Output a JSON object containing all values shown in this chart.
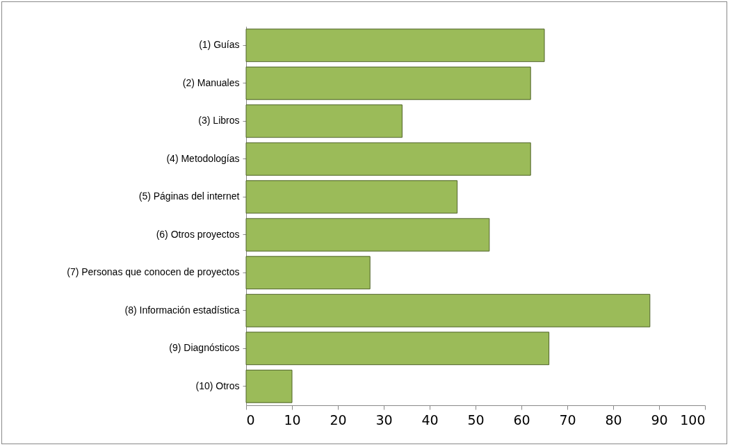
{
  "chart_data": {
    "type": "bar",
    "orientation": "horizontal",
    "categories": [
      "(1) Guías",
      "(2) Manuales",
      "(3) Libros",
      "(4) Metodologías",
      "(5) Páginas del internet",
      "(6) Otros proyectos",
      "(7) Personas que conocen de proyectos",
      "(8) Información estadística",
      "(9) Diagnósticos",
      "(10) Otros"
    ],
    "values": [
      65,
      62,
      34,
      62,
      46,
      53,
      27,
      88,
      66,
      10
    ],
    "color": "#9bbb59",
    "xlim": [
      0,
      100
    ],
    "xticks": [
      0,
      10,
      20,
      30,
      40,
      50,
      60,
      70,
      80,
      90,
      100
    ],
    "grid": false
  }
}
